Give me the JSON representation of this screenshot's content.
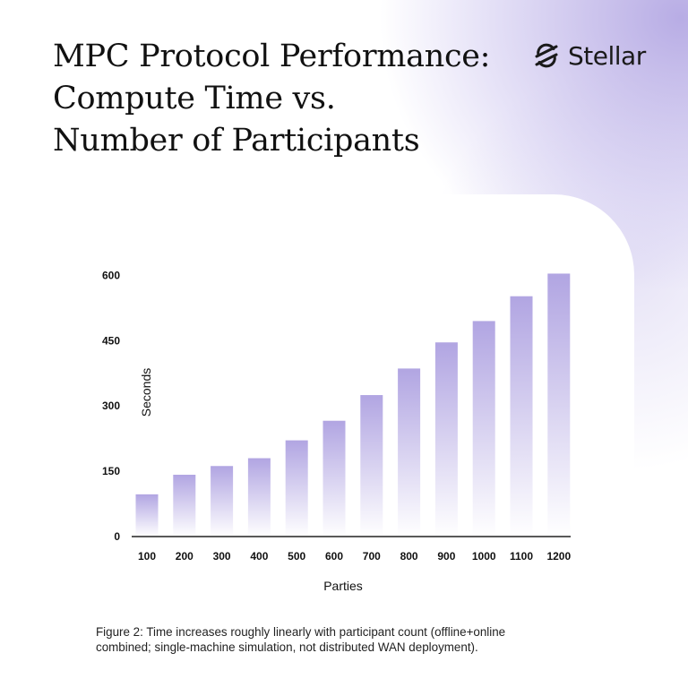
{
  "header": {
    "title_lines": [
      "MPC Protocol Performance:",
      "Compute Time vs.",
      "Number of Participants"
    ],
    "brand_name": "Stellar",
    "brand_icon": "stellar-logo-icon"
  },
  "colors": {
    "bar_top": "#b1a5e2",
    "bar_bottom": "#ffffff",
    "axis": "#222222",
    "text": "#111111"
  },
  "chart_data": {
    "type": "bar",
    "title": "MPC Protocol Performance: Compute Time vs. Number of Participants",
    "xlabel": "Parties",
    "ylabel": "Seconds",
    "categories": [
      "100",
      "200",
      "300",
      "400",
      "500",
      "600",
      "700",
      "800",
      "900",
      "1000",
      "1100",
      "1200"
    ],
    "values": [
      97,
      142,
      162,
      180,
      221,
      266,
      325,
      386,
      446,
      495,
      552,
      604
    ],
    "yticks": [
      "0",
      "150",
      "300",
      "450",
      "600"
    ],
    "ylim": [
      0,
      615
    ],
    "grid": false,
    "legend": "none"
  },
  "caption": {
    "lines": [
      "Figure 2: Time increases roughly linearly with participant count (offline+online",
      "combined; single-machine simulation, not distributed WAN deployment)."
    ]
  }
}
